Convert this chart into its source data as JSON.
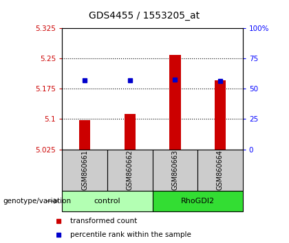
{
  "title": "GDS4455 / 1553205_at",
  "samples": [
    "GSM860661",
    "GSM860662",
    "GSM860663",
    "GSM860664"
  ],
  "groups": [
    {
      "name": "control",
      "indices": [
        0,
        1
      ],
      "color": "#b3ffb3"
    },
    {
      "name": "RhoGDI2",
      "indices": [
        2,
        3
      ],
      "color": "#33dd33"
    }
  ],
  "red_values": [
    5.097,
    5.113,
    5.258,
    5.195
  ],
  "blue_values": [
    5.196,
    5.196,
    5.198,
    5.194
  ],
  "baseline": 5.025,
  "ylim_left": [
    5.025,
    5.325
  ],
  "ylim_right": [
    0,
    100
  ],
  "yticks_left": [
    5.025,
    5.1,
    5.175,
    5.25,
    5.325
  ],
  "ytick_labels_left": [
    "5.025",
    "5.1",
    "5.175",
    "5.25",
    "5.325"
  ],
  "yticks_right": [
    0,
    25,
    50,
    75,
    100
  ],
  "ytick_labels_right": [
    "0",
    "25",
    "50",
    "75",
    "100%"
  ],
  "grid_ticks": [
    5.1,
    5.175,
    5.25
  ],
  "bar_color": "#cc0000",
  "dot_color": "#0000cc",
  "sample_box_color": "#cccccc",
  "legend_red_label": "transformed count",
  "legend_blue_label": "percentile rank within the sample",
  "genotype_label": "genotype/variation",
  "bar_width": 0.25
}
